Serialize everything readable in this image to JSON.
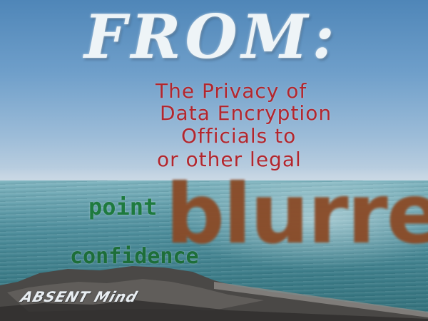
{
  "heading": "FROM:",
  "message_lines": [
    "The Privacy of",
    "Data Encryption",
    "Officials to",
    "or other legal"
  ],
  "word_point": "point",
  "word_confidence": "confidence",
  "word_blurred": "blurred",
  "signature": "ABSENT Mind"
}
